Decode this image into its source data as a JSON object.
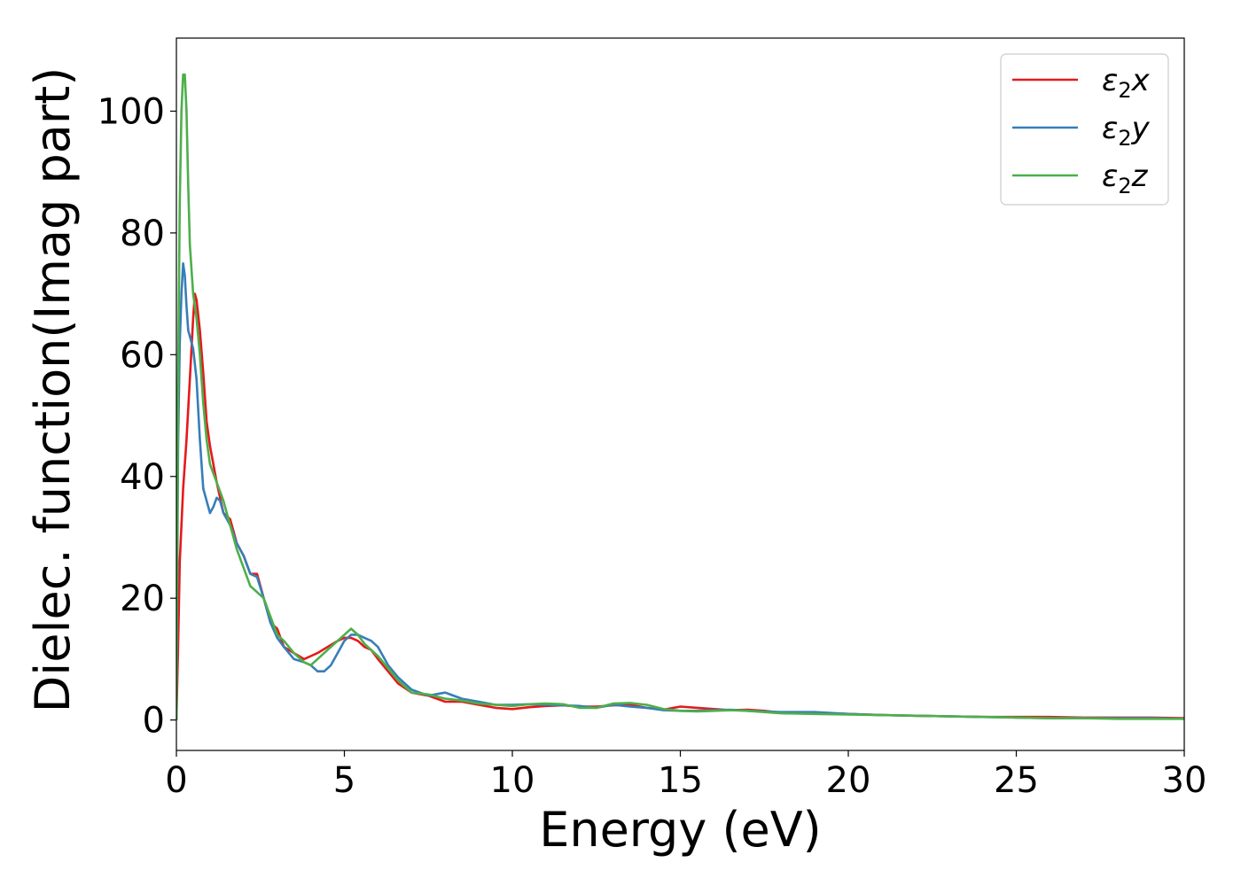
{
  "chart_data": {
    "type": "line",
    "title": "",
    "xlabel": "Energy (eV)",
    "ylabel": "Dielec. function(Imag part)",
    "xlim": [
      0,
      30
    ],
    "ylim": [
      -5,
      112
    ],
    "xticks": [
      0,
      5,
      10,
      15,
      20,
      25,
      30
    ],
    "yticks": [
      0,
      20,
      40,
      60,
      80,
      100
    ],
    "xtick_labels": [
      "0",
      "5",
      "10",
      "15",
      "20",
      "25",
      "30"
    ],
    "ytick_labels": [
      "0",
      "20",
      "40",
      "60",
      "80",
      "100"
    ],
    "grid": false,
    "legend_position": "top-right",
    "series": [
      {
        "name": "ε₂x",
        "label_main": "ε",
        "label_sub": "2",
        "label_var": "x",
        "color": "#e41a1c",
        "x": [
          0,
          0.05,
          0.1,
          0.2,
          0.3,
          0.4,
          0.5,
          0.55,
          0.6,
          0.7,
          0.8,
          0.9,
          1.0,
          1.1,
          1.2,
          1.4,
          1.6,
          1.8,
          2.0,
          2.2,
          2.4,
          2.6,
          2.8,
          3.0,
          3.2,
          3.5,
          3.8,
          4.0,
          4.2,
          4.5,
          4.8,
          5.0,
          5.2,
          5.4,
          5.6,
          5.8,
          6.0,
          6.3,
          6.6,
          7.0,
          7.5,
          8.0,
          8.5,
          9.0,
          9.5,
          10.0,
          10.5,
          11.0,
          11.5,
          12.0,
          12.5,
          13.0,
          13.5,
          14.0,
          14.5,
          15.0,
          15.5,
          16.0,
          16.5,
          17.0,
          17.5,
          18.0,
          19.0,
          20.0,
          21.0,
          22.0,
          23.0,
          24.0,
          25.0,
          26.0,
          27.0,
          28.0,
          29.0,
          30.0
        ],
        "y": [
          0,
          12,
          26,
          38,
          46,
          56,
          66,
          70,
          69,
          64,
          57,
          49,
          45,
          42,
          39,
          34,
          33,
          29,
          27,
          24,
          24,
          20,
          16,
          15,
          12,
          11,
          10,
          10.5,
          11,
          12,
          13,
          13.5,
          13.5,
          13,
          12,
          11.5,
          10,
          8,
          6,
          4.5,
          4,
          3,
          3,
          2.5,
          2,
          1.8,
          2.1,
          2.3,
          2.4,
          2.2,
          2.2,
          2.4,
          2.5,
          2.0,
          1.7,
          2.2,
          2.0,
          1.8,
          1.6,
          1.7,
          1.5,
          1.2,
          1.2,
          1.0,
          0.8,
          0.7,
          0.6,
          0.5,
          0.5,
          0.5,
          0.4,
          0.4,
          0.4,
          0.3
        ]
      },
      {
        "name": "ε₂y",
        "label_main": "ε",
        "label_sub": "2",
        "label_var": "y",
        "color": "#377eb8",
        "x": [
          0,
          0.05,
          0.1,
          0.15,
          0.2,
          0.25,
          0.3,
          0.35,
          0.4,
          0.5,
          0.6,
          0.7,
          0.8,
          0.9,
          1.0,
          1.1,
          1.2,
          1.3,
          1.4,
          1.6,
          1.8,
          2.0,
          2.2,
          2.4,
          2.6,
          2.8,
          3.0,
          3.2,
          3.5,
          3.8,
          4.0,
          4.2,
          4.4,
          4.6,
          4.8,
          5.0,
          5.2,
          5.4,
          5.6,
          5.8,
          6.0,
          6.3,
          6.6,
          7.0,
          7.5,
          8.0,
          8.5,
          9.0,
          9.5,
          10.0,
          10.5,
          11.0,
          11.5,
          12.0,
          12.5,
          13.0,
          13.5,
          14.0,
          14.5,
          15.0,
          15.5,
          16.0,
          16.5,
          17.0,
          17.5,
          18.0,
          19.0,
          20.0,
          21.0,
          22.0,
          23.0,
          24.0,
          25.0,
          26.0,
          27.0,
          28.0,
          29.0,
          30.0
        ],
        "y": [
          0,
          45,
          62,
          70,
          75,
          73,
          68,
          64,
          63,
          61,
          56,
          46,
          38,
          36,
          34,
          35,
          36.5,
          36,
          34,
          32,
          29,
          27,
          24,
          23.5,
          20,
          16,
          13.5,
          12,
          10,
          9.5,
          9,
          8,
          8,
          9,
          11,
          13,
          14,
          14,
          13.5,
          13,
          12,
          9,
          7,
          5,
          4,
          4.5,
          3.5,
          3,
          2.5,
          2.5,
          2.6,
          2.5,
          2.4,
          2.3,
          2.0,
          2.5,
          2.2,
          2.0,
          1.6,
          1.5,
          1.5,
          1.6,
          1.7,
          1.5,
          1.4,
          1.3,
          1.3,
          1.0,
          0.8,
          0.7,
          0.6,
          0.5,
          0.4,
          0.3,
          0.3,
          0.3,
          0.3,
          0.2
        ]
      },
      {
        "name": "ε₂z",
        "label_main": "ε",
        "label_sub": "2",
        "label_var": "z",
        "color": "#4daf4a",
        "x": [
          0,
          0.05,
          0.1,
          0.15,
          0.2,
          0.25,
          0.3,
          0.35,
          0.4,
          0.5,
          0.6,
          0.7,
          0.8,
          0.9,
          1.0,
          1.2,
          1.4,
          1.6,
          1.8,
          2.0,
          2.2,
          2.4,
          2.6,
          2.8,
          3.0,
          3.2,
          3.5,
          3.8,
          4.0,
          4.2,
          4.5,
          4.8,
          5.0,
          5.2,
          5.4,
          5.6,
          5.8,
          6.0,
          6.3,
          6.6,
          7.0,
          7.5,
          8.0,
          8.5,
          9.0,
          9.5,
          10.0,
          10.5,
          11.0,
          11.5,
          12.0,
          12.5,
          13.0,
          13.5,
          14.0,
          14.5,
          15.0,
          15.5,
          16.0,
          16.5,
          17.0,
          17.5,
          18.0,
          19.0,
          20.0,
          21.0,
          22.0,
          23.0,
          24.0,
          25.0,
          26.0,
          27.0,
          28.0,
          29.0,
          30.0
        ],
        "y": [
          0,
          55,
          85,
          100,
          106,
          106,
          100,
          88,
          78,
          70,
          66,
          60,
          52,
          46,
          42,
          39,
          36,
          32,
          28,
          25,
          22,
          21,
          20,
          17,
          14,
          13,
          11,
          9.5,
          9,
          10,
          11.5,
          13,
          14,
          15,
          14,
          12.5,
          11.5,
          10.5,
          8.5,
          6.5,
          4.5,
          4.2,
          3.5,
          3.2,
          2.7,
          2.5,
          2.3,
          2.6,
          2.7,
          2.6,
          2.0,
          2.0,
          2.7,
          2.8,
          2.5,
          1.8,
          1.5,
          1.4,
          1.5,
          1.6,
          1.5,
          1.3,
          1.1,
          1.0,
          0.9,
          0.8,
          0.7,
          0.6,
          0.5,
          0.4,
          0.3,
          0.3,
          0.2,
          0.2,
          0.2
        ]
      }
    ]
  }
}
